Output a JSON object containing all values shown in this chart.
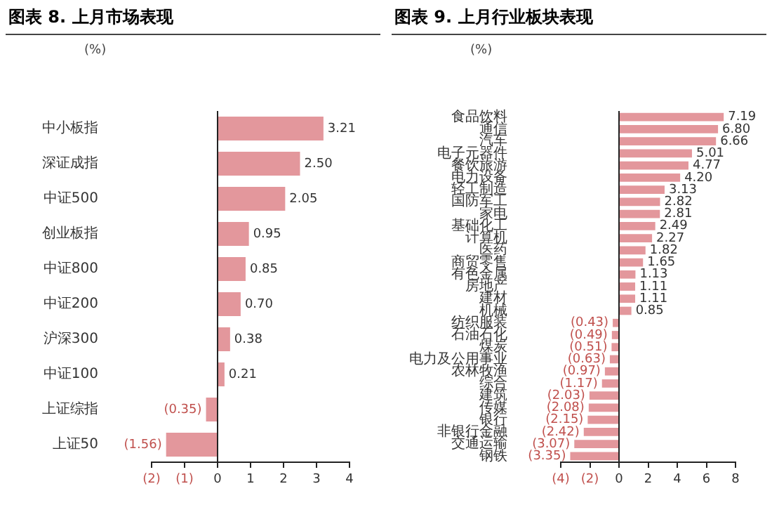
{
  "chart_data": [
    {
      "type": "bar",
      "orientation": "horizontal",
      "title": "图表 8. 上月市场表现",
      "ylabel": "(%)",
      "categories": [
        "中小板指",
        "深证成指",
        "中证500",
        "创业板指",
        "中证800",
        "中证200",
        "沪深300",
        "中证100",
        "上证综指",
        "上证50"
      ],
      "values": [
        3.21,
        2.5,
        2.05,
        0.95,
        0.85,
        0.7,
        0.38,
        0.21,
        -0.35,
        -1.56
      ],
      "value_labels": [
        "3.21",
        "2.50",
        "2.05",
        "0.95",
        "0.85",
        "0.70",
        "0.38",
        "0.21",
        "(0.35)",
        "(1.56)"
      ],
      "color": "#e3979c",
      "xlim": [
        -2,
        4
      ],
      "xticks": [
        {
          "value": -2,
          "label": "(2)"
        },
        {
          "value": -1,
          "label": "(1)"
        },
        0,
        1,
        2,
        3,
        4
      ]
    },
    {
      "type": "bar",
      "orientation": "horizontal",
      "title": "图表 9. 上月行业板块表现",
      "ylabel": "(%)",
      "categories": [
        "食品饮料",
        "通信",
        "汽车",
        "电子元器件",
        "餐饮旅游",
        "电力设备",
        "轻工制造",
        "国防军工",
        "家电",
        "基础化工",
        "计算机",
        "医药",
        "商贸零售",
        "有色金属",
        "房地产",
        "建材",
        "机械",
        "纺织服装",
        "石油石化",
        "煤炭",
        "电力及公用事业",
        "农林牧渔",
        "综合",
        "建筑",
        "传媒",
        "银行",
        "非银行金融",
        "交通运输",
        "钢铁"
      ],
      "values": [
        7.19,
        6.8,
        6.66,
        5.01,
        4.77,
        4.2,
        3.13,
        2.82,
        2.81,
        2.49,
        2.27,
        1.82,
        1.65,
        1.13,
        1.11,
        1.11,
        0.85,
        -0.43,
        -0.49,
        -0.51,
        -0.63,
        -0.97,
        -1.17,
        -2.03,
        -2.08,
        -2.15,
        -2.42,
        -3.07,
        -3.35
      ],
      "value_labels": [
        "7.19",
        "6.80",
        "6.66",
        "5.01",
        "4.77",
        "4.20",
        "3.13",
        "2.82",
        "2.81",
        "2.49",
        "2.27",
        "1.82",
        "1.65",
        "1.13",
        "1.11",
        "1.11",
        "0.85",
        "(0.43)",
        "(0.49)",
        "(0.51)",
        "(0.63)",
        "(0.97)",
        "(1.17)",
        "(2.03)",
        "(2.08)",
        "(2.15)",
        "(2.42)",
        "(3.07)",
        "(3.35)"
      ],
      "color": "#e3979c",
      "xlim": [
        -4,
        8
      ],
      "xticks": [
        {
          "value": -4,
          "label": "(4)"
        },
        {
          "value": -2,
          "label": "(2)"
        },
        0,
        2,
        4,
        6,
        8
      ]
    }
  ]
}
